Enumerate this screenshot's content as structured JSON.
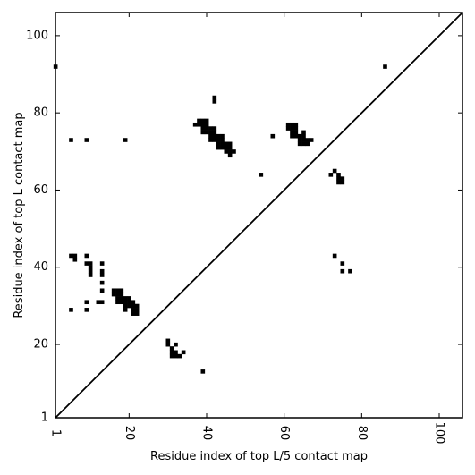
{
  "chart_data": {
    "type": "scatter",
    "title": "",
    "xlabel": "Residue index of top L/5 contact map",
    "ylabel": "Residue index of top L contact map",
    "xlim": [
      1,
      106
    ],
    "ylim": [
      1,
      106
    ],
    "x_ticks": [
      1,
      20,
      40,
      60,
      80,
      100
    ],
    "y_ticks": [
      1,
      20,
      40,
      60,
      80,
      100
    ],
    "grid": false,
    "legend": "none",
    "marker_color": "#000000",
    "diagonal_line": {
      "from": [
        1,
        1
      ],
      "to": [
        106,
        106
      ],
      "color": "#000000"
    },
    "series": [
      {
        "region": "upper-left",
        "points": [
          [
            1,
            92
          ],
          [
            5,
            73
          ],
          [
            9,
            73
          ],
          [
            19,
            73
          ],
          [
            5,
            43
          ],
          [
            6,
            43
          ],
          [
            6,
            42
          ],
          [
            9,
            43
          ],
          [
            9,
            41
          ],
          [
            10,
            41
          ],
          [
            10,
            40
          ],
          [
            10,
            39
          ],
          [
            10,
            38
          ],
          [
            13,
            41
          ],
          [
            13,
            39
          ],
          [
            13,
            38
          ],
          [
            13,
            36
          ],
          [
            13,
            34
          ],
          [
            9,
            31
          ],
          [
            12,
            31
          ],
          [
            13,
            31
          ],
          [
            5,
            29
          ],
          [
            9,
            29
          ],
          [
            16,
            34
          ],
          [
            17,
            34
          ],
          [
            18,
            34
          ],
          [
            16,
            33
          ],
          [
            17,
            33
          ],
          [
            18,
            33
          ],
          [
            17,
            32
          ],
          [
            18,
            32
          ],
          [
            19,
            32
          ],
          [
            20,
            32
          ],
          [
            17,
            31
          ],
          [
            18,
            31
          ],
          [
            19,
            31
          ],
          [
            20,
            31
          ],
          [
            21,
            31
          ],
          [
            19,
            30
          ],
          [
            20,
            30
          ],
          [
            21,
            30
          ],
          [
            22,
            30
          ],
          [
            19,
            29
          ],
          [
            21,
            29
          ],
          [
            22,
            29
          ],
          [
            21,
            28
          ],
          [
            22,
            28
          ],
          [
            30,
            21
          ],
          [
            30,
            20
          ],
          [
            31,
            19
          ],
          [
            32,
            20
          ],
          [
            31,
            18
          ],
          [
            32,
            18
          ],
          [
            31,
            17
          ],
          [
            32,
            17
          ],
          [
            33,
            17
          ],
          [
            34,
            18
          ],
          [
            39,
            13
          ],
          [
            42,
            84
          ],
          [
            42,
            83
          ],
          [
            37,
            77
          ],
          [
            38,
            78
          ],
          [
            39,
            78
          ],
          [
            40,
            78
          ],
          [
            38,
            77
          ],
          [
            39,
            77
          ],
          [
            40,
            77
          ],
          [
            39,
            76
          ],
          [
            40,
            76
          ],
          [
            41,
            76
          ],
          [
            42,
            76
          ],
          [
            39,
            75
          ],
          [
            40,
            75
          ],
          [
            41,
            75
          ],
          [
            42,
            75
          ],
          [
            41,
            74
          ],
          [
            42,
            74
          ],
          [
            43,
            74
          ],
          [
            44,
            74
          ],
          [
            41,
            73
          ],
          [
            42,
            73
          ],
          [
            43,
            73
          ],
          [
            44,
            73
          ],
          [
            43,
            72
          ],
          [
            44,
            72
          ],
          [
            45,
            72
          ],
          [
            46,
            72
          ],
          [
            43,
            71
          ],
          [
            44,
            71
          ],
          [
            45,
            71
          ],
          [
            46,
            71
          ],
          [
            45,
            70
          ],
          [
            46,
            70
          ],
          [
            47,
            70
          ],
          [
            46,
            69
          ],
          [
            57,
            74
          ],
          [
            54,
            64
          ],
          [
            61,
            77
          ],
          [
            62,
            77
          ],
          [
            63,
            77
          ],
          [
            61,
            76
          ],
          [
            62,
            76
          ],
          [
            63,
            76
          ],
          [
            62,
            75
          ],
          [
            63,
            75
          ],
          [
            65,
            75
          ],
          [
            62,
            74
          ],
          [
            63,
            74
          ],
          [
            64,
            74
          ],
          [
            65,
            74
          ],
          [
            64,
            73
          ],
          [
            65,
            73
          ],
          [
            66,
            73
          ],
          [
            67,
            73
          ],
          [
            64,
            72
          ],
          [
            65,
            72
          ],
          [
            66,
            72
          ],
          [
            72,
            64
          ],
          [
            73,
            65
          ],
          [
            74,
            64
          ],
          [
            74,
            63
          ],
          [
            75,
            63
          ],
          [
            74,
            62
          ],
          [
            75,
            62
          ],
          [
            73,
            43
          ],
          [
            75,
            41
          ],
          [
            75,
            39
          ],
          [
            77,
            39
          ],
          [
            86,
            92
          ]
        ]
      }
    ]
  }
}
